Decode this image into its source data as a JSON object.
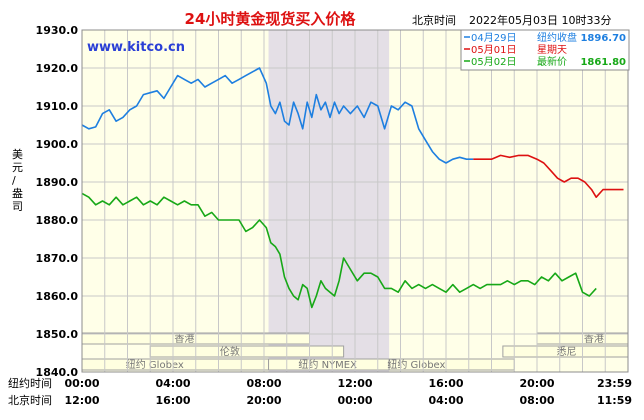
{
  "chart_data": {
    "type": "line",
    "title": "24小时黄金现货买入价格",
    "watermark": "www.kitco.cn",
    "timestamp_label": "北京时间",
    "timestamp_value": "2022年05月03日 10时33分",
    "ylabel": "美元/盎司",
    "ylim": [
      1840,
      1930
    ],
    "y_ticks": [
      "1930.0",
      "1920.0",
      "1910.0",
      "1900.0",
      "1890.0",
      "1880.0",
      "1870.0",
      "1860.0",
      "1850.0",
      "1840.0"
    ],
    "grid": true,
    "legend_position": "top-right",
    "x_axis_rows": [
      {
        "label": "纽约时间",
        "ticks": [
          "00:00",
          "04:00",
          "08:00",
          "12:00",
          "16:00",
          "20:00",
          "23:59"
        ]
      },
      {
        "label": "北京时间",
        "ticks": [
          "12:00",
          "16:00",
          "20:00",
          "00:00",
          "04:00",
          "08:00",
          "11:59"
        ]
      }
    ],
    "legend": [
      {
        "date": "04月29日",
        "label": "纽约收盘",
        "value": "1896.70",
        "color": "#1e7fe0"
      },
      {
        "date": "05月01日",
        "label": "星期天",
        "value": "",
        "color": "#dd1111"
      },
      {
        "date": "05月02日",
        "label": "最新价",
        "value": "1861.80",
        "color": "#17a817"
      }
    ],
    "session_bars": [
      {
        "label": "香港",
        "row": 0,
        "start": 0,
        "end": 10,
        "label_pos": 4.5
      },
      {
        "label": "香港",
        "row": 0,
        "start": 20,
        "end": 24,
        "label_pos": 22.5
      },
      {
        "label": "纽约 Globex",
        "row": 2,
        "start": 0,
        "end": 8.2,
        "label_pos": 3.2
      },
      {
        "label": "伦敦",
        "row": 1,
        "start": 3,
        "end": 11.5,
        "label_pos": 6.5
      },
      {
        "label": "纽约 NYMEX",
        "row": 2,
        "start": 8.2,
        "end": 13.5,
        "label_pos": 10.8
      },
      {
        "label": "纽约 Globex",
        "row": 2,
        "start": 13.5,
        "end": 19,
        "label_pos": 14.7
      },
      {
        "label": "悉尼",
        "row": 1,
        "start": 18.5,
        "end": 24,
        "label_pos": 21.3
      }
    ],
    "highlight_band": [
      8.2,
      13.5
    ],
    "series": [
      {
        "date": "04月29日",
        "color": "#1e7fe0",
        "x": [
          0,
          0.3,
          0.6,
          0.9,
          1.2,
          1.5,
          1.8,
          2.1,
          2.4,
          2.7,
          3.0,
          3.3,
          3.6,
          3.9,
          4.2,
          4.5,
          4.8,
          5.1,
          5.4,
          5.7,
          6.0,
          6.3,
          6.6,
          6.9,
          7.2,
          7.5,
          7.8,
          8.1,
          8.3,
          8.5,
          8.7,
          8.9,
          9.1,
          9.3,
          9.5,
          9.7,
          9.9,
          10.1,
          10.3,
          10.5,
          10.7,
          10.9,
          11.1,
          11.3,
          11.5,
          11.8,
          12.1,
          12.4,
          12.7,
          13.0,
          13.3,
          13.6,
          13.9,
          14.2,
          14.5,
          14.8,
          15.1,
          15.4,
          15.7,
          16.0,
          16.3,
          16.6,
          16.9,
          17.2
        ],
        "y": [
          1905,
          1904,
          1904.5,
          1908,
          1909,
          1906,
          1907,
          1909,
          1910,
          1913,
          1913.5,
          1914,
          1912,
          1915,
          1918,
          1917,
          1916,
          1917,
          1915,
          1916,
          1917,
          1918,
          1916,
          1917,
          1918,
          1919,
          1920,
          1916,
          1910,
          1908,
          1911,
          1906,
          1905,
          1911,
          1908,
          1904,
          1911,
          1907,
          1913,
          1909,
          1911,
          1907,
          1911,
          1908,
          1910,
          1908,
          1910,
          1907,
          1911,
          1910,
          1904,
          1910,
          1909,
          1911,
          1910,
          1904,
          1901,
          1898,
          1896,
          1895,
          1896,
          1896.5,
          1896,
          1896
        ],
        "name": ""
      },
      {
        "date": "05月01日",
        "color": "#dd1111",
        "x": [
          17.2,
          17.6,
          18.0,
          18.4,
          18.8,
          19.2,
          19.6,
          20.0,
          20.3,
          20.6,
          20.9,
          21.2,
          21.5,
          21.8,
          22.1,
          22.4,
          22.6,
          22.9,
          23.2,
          23.5,
          23.8
        ],
        "y": [
          1896,
          1896,
          1896,
          1897,
          1896.5,
          1897,
          1897,
          1896,
          1895,
          1893,
          1891,
          1890,
          1891,
          1891,
          1890,
          1888,
          1886,
          1888,
          1888,
          1888,
          1888
        ],
        "name": ""
      },
      {
        "date": "05月02日",
        "color": "#17a817",
        "x": [
          0,
          0.3,
          0.6,
          0.9,
          1.2,
          1.5,
          1.8,
          2.1,
          2.4,
          2.7,
          3.0,
          3.3,
          3.6,
          3.9,
          4.2,
          4.5,
          4.8,
          5.1,
          5.4,
          5.7,
          6.0,
          6.3,
          6.6,
          6.9,
          7.2,
          7.5,
          7.8,
          8.1,
          8.3,
          8.5,
          8.7,
          8.9,
          9.1,
          9.3,
          9.5,
          9.7,
          9.9,
          10.1,
          10.3,
          10.5,
          10.7,
          10.9,
          11.1,
          11.3,
          11.5,
          11.8,
          12.1,
          12.4,
          12.7,
          13.0,
          13.3,
          13.6,
          13.9,
          14.2,
          14.5,
          14.8,
          15.1,
          15.4,
          15.7,
          16.0,
          16.3,
          16.6,
          16.9,
          17.2,
          17.5,
          17.8,
          18.1,
          18.4,
          18.7,
          19.0,
          19.3,
          19.6,
          19.9,
          20.2,
          20.5,
          20.8,
          21.1,
          21.4,
          21.7,
          22.0,
          22.3,
          22.6
        ],
        "y": [
          1887,
          1886,
          1884,
          1885,
          1884,
          1886,
          1884,
          1885,
          1886,
          1884,
          1885,
          1884,
          1886,
          1885,
          1884,
          1885,
          1884,
          1884,
          1881,
          1882,
          1880,
          1880,
          1880,
          1880,
          1877,
          1878,
          1880,
          1878,
          1874,
          1873,
          1871,
          1865,
          1862,
          1860,
          1859,
          1863,
          1862,
          1857,
          1860,
          1864,
          1862,
          1861,
          1860,
          1864,
          1870,
          1867,
          1864,
          1866,
          1866,
          1865,
          1862,
          1862,
          1861,
          1864,
          1862,
          1863,
          1862,
          1863,
          1862,
          1861,
          1863,
          1861,
          1862,
          1863,
          1862,
          1863,
          1863,
          1863,
          1864,
          1863,
          1864,
          1864,
          1863,
          1865,
          1864,
          1866,
          1864,
          1865,
          1866,
          1861,
          1860,
          1862
        ],
        "name": ""
      }
    ]
  }
}
